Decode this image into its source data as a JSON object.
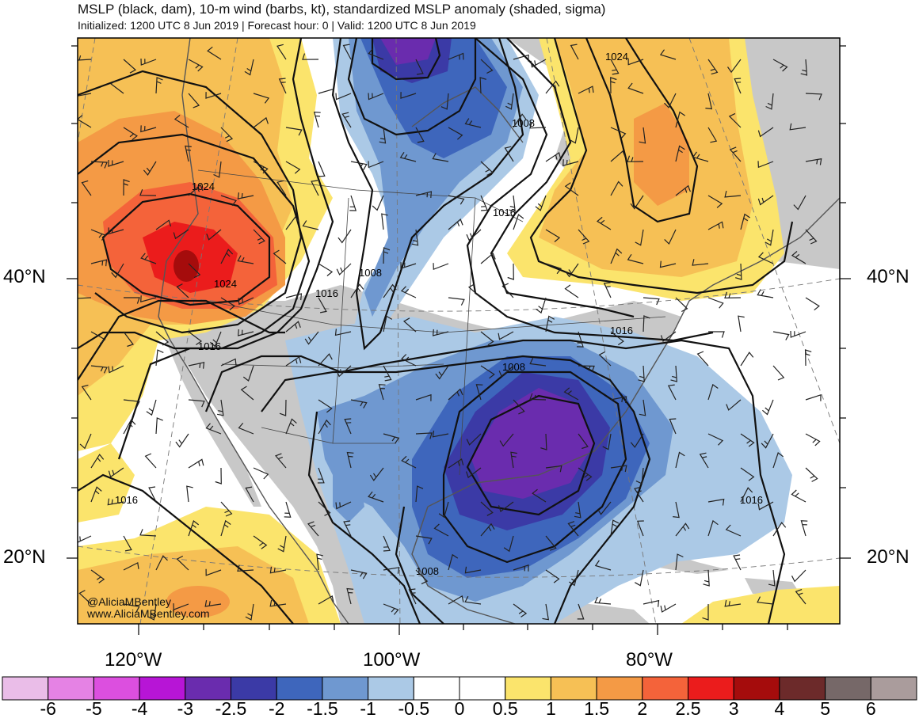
{
  "header": {
    "title": "MSLP (black, dam), 10-m wind (barbs, kt), standardized MSLP anomaly (shaded, sigma)",
    "subtitle": "Initialized: 1200 UTC 8 Jun 2019 | Forecast hour: 0 | Valid: 1200 UTC 8 Jun 2019"
  },
  "axes": {
    "lat_labels": [
      "40°N",
      "20°N"
    ],
    "lon_labels": [
      "120°W",
      "100°W",
      "80°W"
    ]
  },
  "isobars": {
    "labels": [
      "1024",
      "1008",
      "1024",
      "1016",
      "1008",
      "1024",
      "1016",
      "1016",
      "1016",
      "1008",
      "1016",
      "1016",
      "1008"
    ]
  },
  "credits": {
    "twitter": "@AliciaMBentley",
    "website": "www.AliciaMBentley.com"
  },
  "colorbar": {
    "labels": [
      "-6",
      "-5",
      "-4",
      "-3",
      "-2.5",
      "-2",
      "-1.5",
      "-1",
      "-0.5",
      "0",
      "0.5",
      "1",
      "1.5",
      "2",
      "2.5",
      "3",
      "4",
      "5",
      "6"
    ],
    "colors": [
      "#eabde8",
      "#e582e4",
      "#dc4fdf",
      "#b715d6",
      "#6a2cae",
      "#3b3aa6",
      "#3e66bc",
      "#6f98d0",
      "#abc9e6",
      "#ffffff",
      "#ffffff",
      "#fbe46c",
      "#f6c055",
      "#f49a45",
      "#f4633a",
      "#eb1c1c",
      "#a50c0c",
      "#6c2a2a",
      "#766868",
      "#aa9c9c"
    ]
  },
  "colors": {
    "land": "#c8c8c8",
    "ocean": "#ffffff",
    "isobar": "#111111",
    "barb": "#222222",
    "coast": "#555555"
  }
}
